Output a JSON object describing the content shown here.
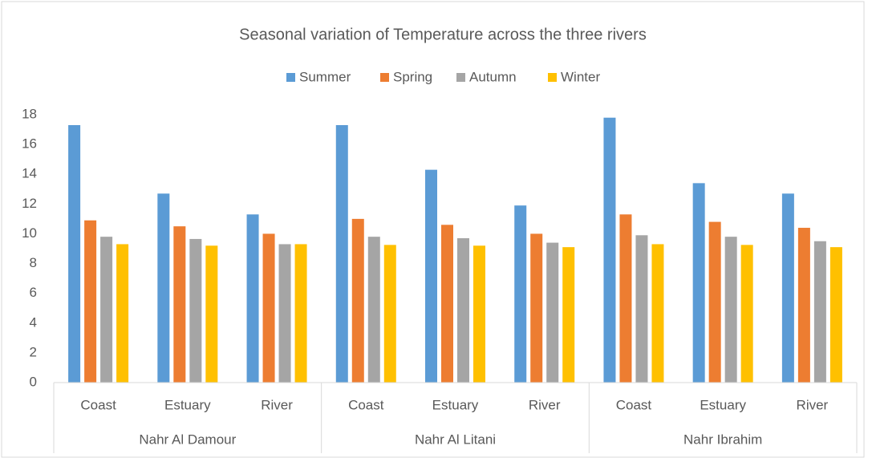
{
  "chart_data": {
    "type": "bar",
    "title": "Seasonal variation of Temperature across the three rivers",
    "categories": [
      "Coast",
      "Estuary",
      "River",
      "Coast",
      "Estuary",
      "River",
      "Coast",
      "Estuary",
      "River"
    ],
    "groups": [
      "Nahr Al Damour",
      "Nahr Al Litani",
      "Nahr Ibrahim"
    ],
    "series": [
      {
        "name": "Summer",
        "color": "#5b9bd5",
        "values": [
          17.3,
          12.7,
          11.3,
          17.3,
          14.3,
          11.9,
          17.8,
          13.4,
          12.7
        ]
      },
      {
        "name": "Spring",
        "color": "#ed7d31",
        "values": [
          10.9,
          10.5,
          10.0,
          11.0,
          10.6,
          10.0,
          11.3,
          10.8,
          10.4
        ]
      },
      {
        "name": "Autumn",
        "color": "#a5a5a5",
        "values": [
          9.8,
          9.65,
          9.3,
          9.8,
          9.7,
          9.4,
          9.9,
          9.8,
          9.5
        ]
      },
      {
        "name": "Winter",
        "color": "#ffc000",
        "values": [
          9.3,
          9.2,
          9.3,
          9.25,
          9.2,
          9.1,
          9.3,
          9.25,
          9.1
        ]
      }
    ],
    "ylim": [
      0,
      18
    ],
    "yticks": [
      0,
      2,
      4,
      6,
      8,
      10,
      12,
      14,
      16,
      18
    ],
    "grid": false,
    "legend": "top"
  }
}
